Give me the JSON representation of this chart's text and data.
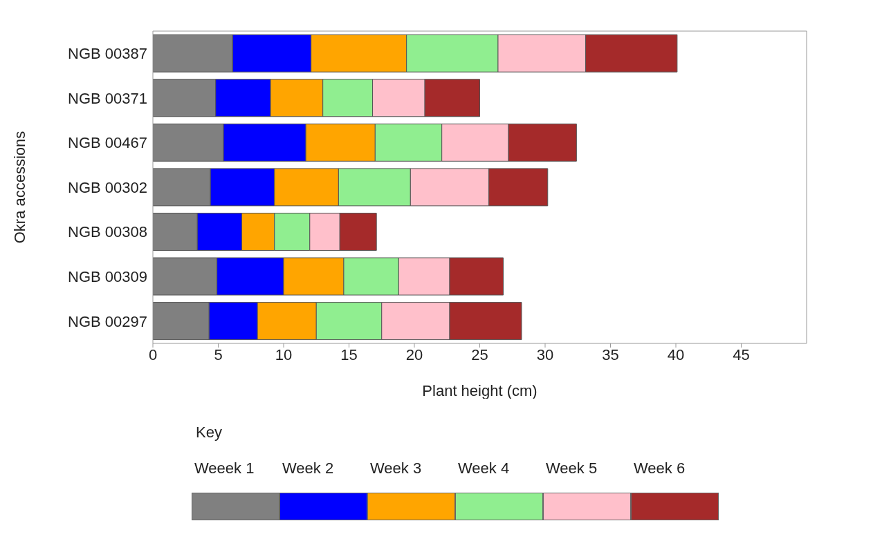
{
  "chart_data": {
    "type": "bar",
    "orientation": "horizontal",
    "stacked": true,
    "xlabel": "Plant height (cm)",
    "ylabel": "Okra accessions",
    "legend_title": "Key",
    "legend": "bottom",
    "grid": false,
    "categories": [
      "NGB 00387",
      "NGB 00371",
      "NGB 00467",
      "NGB 00302",
      "NGB 00308",
      "NGB 00309",
      "NGB 00297"
    ],
    "xlim": [
      0,
      50
    ],
    "xticks": [
      0,
      5,
      10,
      15,
      20,
      25,
      30,
      35,
      40,
      45
    ],
    "series": [
      {
        "name": "Weeek 1",
        "color": "#808080",
        "values": [
          6.1,
          4.8,
          5.4,
          4.4,
          3.4,
          4.9,
          4.3
        ]
      },
      {
        "name": "Week 2",
        "color": "#0000ff",
        "values": [
          6.0,
          4.2,
          6.3,
          4.9,
          3.4,
          5.1,
          3.7
        ]
      },
      {
        "name": "Week 3",
        "color": "#ffa500",
        "values": [
          7.3,
          4.0,
          5.3,
          4.9,
          2.5,
          4.6,
          4.5
        ]
      },
      {
        "name": "Week 4",
        "color": "#90ee90",
        "values": [
          7.0,
          3.8,
          5.1,
          5.5,
          2.7,
          4.2,
          5.0
        ]
      },
      {
        "name": "Week 5",
        "color": "#ffc0cb",
        "values": [
          6.7,
          4.0,
          5.1,
          6.0,
          2.3,
          3.9,
          5.2
        ]
      },
      {
        "name": "Week 6",
        "color": "#a52a2a",
        "values": [
          7.0,
          4.2,
          5.2,
          4.5,
          2.8,
          4.1,
          5.5
        ]
      }
    ]
  }
}
